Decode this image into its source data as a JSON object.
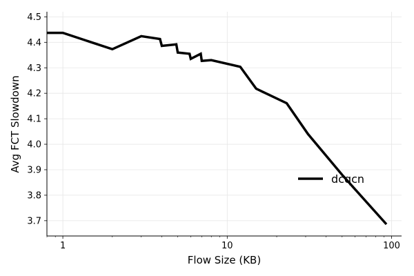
{
  "chart_data": {
    "type": "line",
    "title": "",
    "xlabel": "Flow Size (KB)",
    "ylabel": "Avg FCT Slowdown",
    "xscale": "log",
    "xlim": [
      0.8,
      115
    ],
    "ylim": [
      3.64,
      4.52
    ],
    "xticks": [
      {
        "value": 1,
        "label": "1"
      },
      {
        "value": 10,
        "label": "10"
      },
      {
        "value": 100,
        "label": "100"
      }
    ],
    "yticks": [
      {
        "value": 3.7,
        "label": "3.7"
      },
      {
        "value": 3.8,
        "label": "3.8"
      },
      {
        "value": 3.9,
        "label": "3.9"
      },
      {
        "value": 4.0,
        "label": "4.0"
      },
      {
        "value": 4.1,
        "label": "4.1"
      },
      {
        "value": 4.2,
        "label": "4.2"
      },
      {
        "value": 4.3,
        "label": "4.3"
      },
      {
        "value": 4.4,
        "label": "4.4"
      },
      {
        "value": 4.5,
        "label": "4.5"
      }
    ],
    "grid": true,
    "legend_position": "center-right",
    "series": [
      {
        "name": "dcqcn",
        "color": "#000000",
        "x": [
          0.8,
          1.0,
          2.0,
          3.0,
          3.9,
          4.0,
          4.9,
          5.0,
          5.9,
          6.0,
          6.9,
          7.0,
          8.0,
          12.0,
          15.0,
          23.0,
          31.0,
          50.0,
          93.0
        ],
        "y": [
          4.437,
          4.437,
          4.373,
          4.424,
          4.413,
          4.386,
          4.392,
          4.36,
          4.355,
          4.335,
          4.355,
          4.327,
          4.33,
          4.304,
          4.218,
          4.161,
          4.04,
          3.88,
          3.686
        ]
      }
    ]
  }
}
